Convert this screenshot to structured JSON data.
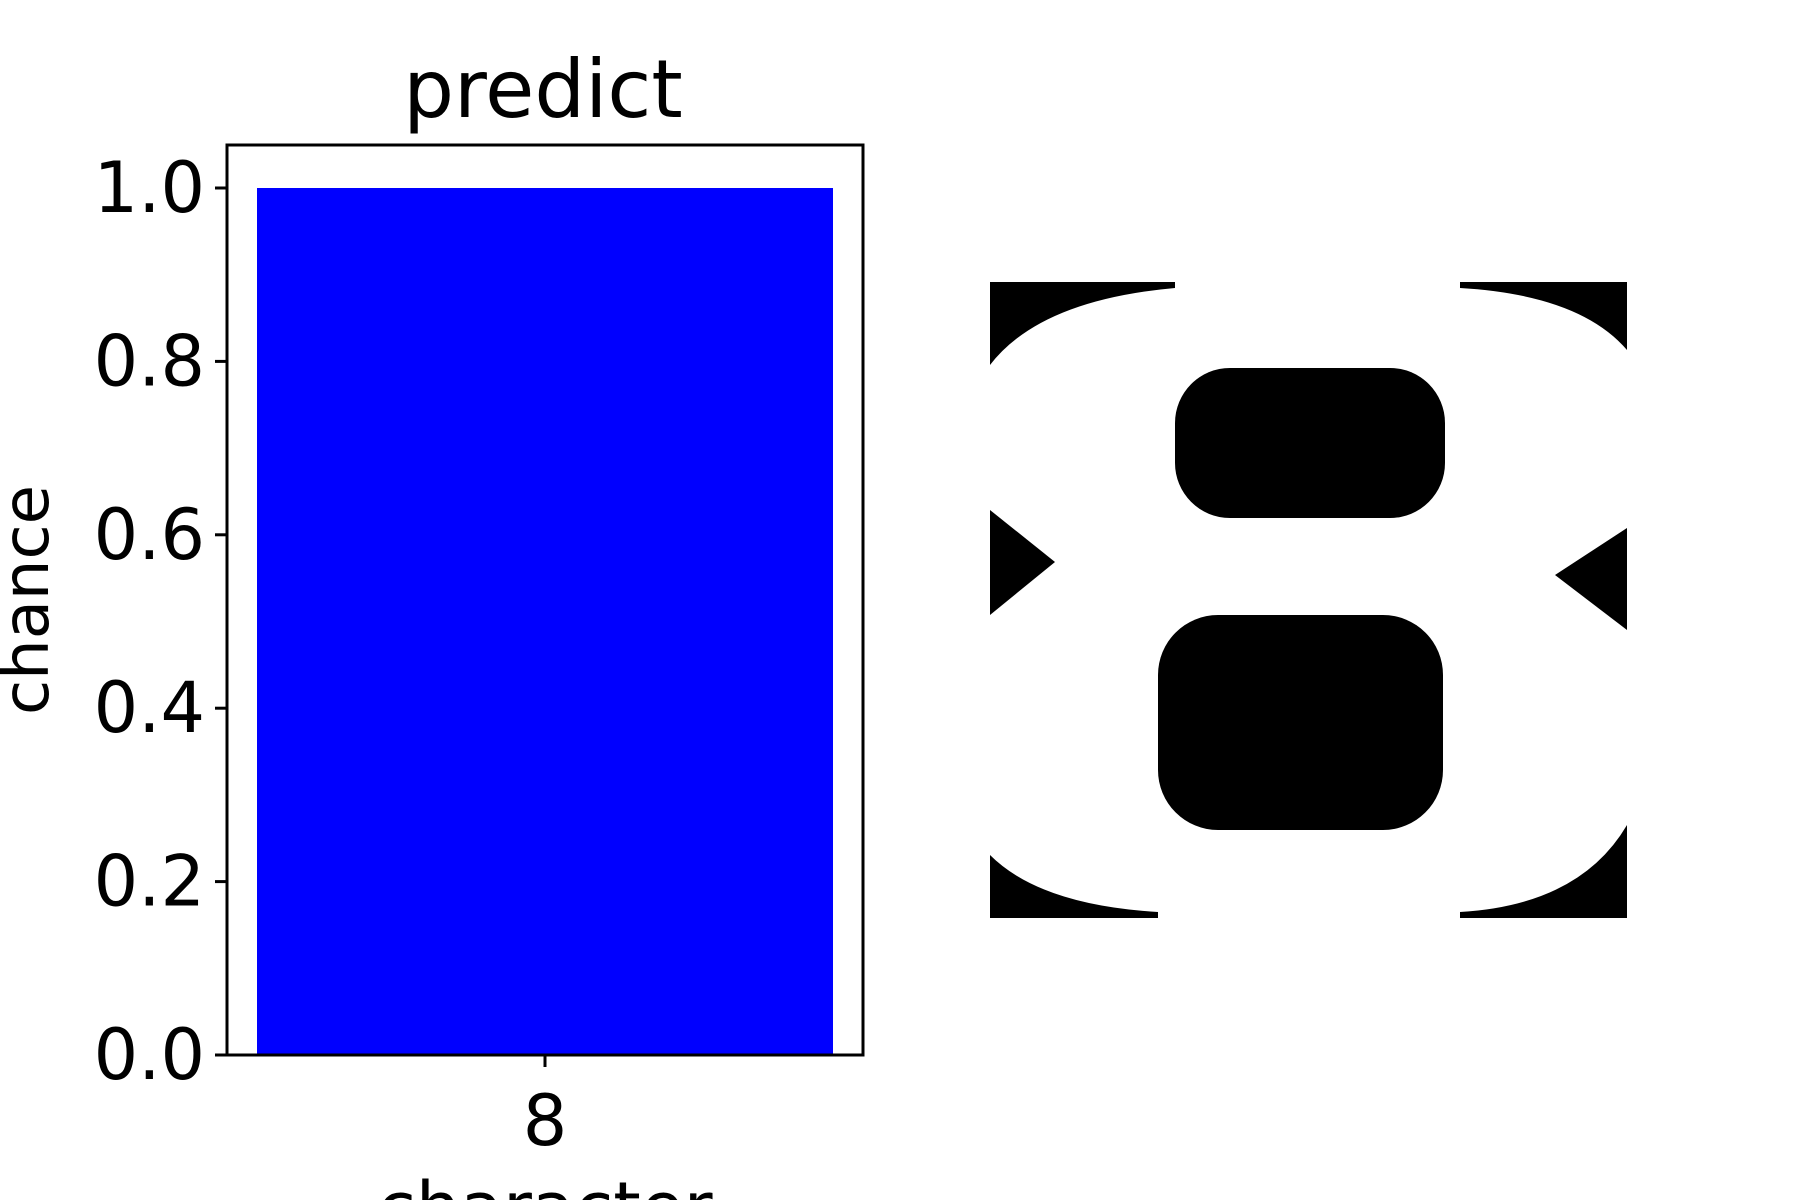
{
  "chart_data": {
    "type": "bar",
    "title": "predict",
    "xlabel": "character",
    "ylabel": "chance",
    "categories": [
      "8"
    ],
    "values": [
      1.0
    ],
    "ylim": [
      0,
      1.05
    ],
    "yticks": [
      "0.0",
      "0.2",
      "0.4",
      "0.6",
      "0.8",
      "1.0"
    ],
    "grid": false,
    "bar_color": "#0000ff"
  },
  "image_panel": {
    "description_icon": "digit-image",
    "foreground": "#000000",
    "background": "#ffffff"
  }
}
